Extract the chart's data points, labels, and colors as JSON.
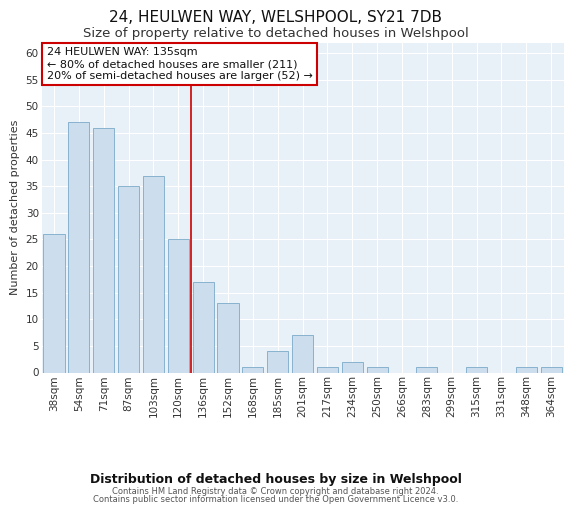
{
  "title": "24, HEULWEN WAY, WELSHPOOL, SY21 7DB",
  "subtitle": "Size of property relative to detached houses in Welshpool",
  "xlabel": "Distribution of detached houses by size in Welshpool",
  "ylabel": "Number of detached properties",
  "categories": [
    "38sqm",
    "54sqm",
    "71sqm",
    "87sqm",
    "103sqm",
    "120sqm",
    "136sqm",
    "152sqm",
    "168sqm",
    "185sqm",
    "201sqm",
    "217sqm",
    "234sqm",
    "250sqm",
    "266sqm",
    "283sqm",
    "299sqm",
    "315sqm",
    "331sqm",
    "348sqm",
    "364sqm"
  ],
  "values": [
    26,
    47,
    46,
    35,
    37,
    25,
    17,
    13,
    1,
    4,
    7,
    1,
    2,
    1,
    0,
    1,
    0,
    1,
    0,
    1,
    1
  ],
  "bar_color": "#ccdded",
  "bar_edge_color": "#7aaac8",
  "highlight_line_index": 6,
  "ylim": [
    0,
    62
  ],
  "yticks": [
    0,
    5,
    10,
    15,
    20,
    25,
    30,
    35,
    40,
    45,
    50,
    55,
    60
  ],
  "annotation_title": "24 HEULWEN WAY: 135sqm",
  "annotation_line1": "← 80% of detached houses are smaller (211)",
  "annotation_line2": "20% of semi-detached houses are larger (52) →",
  "annotation_box_color": "#ffffff",
  "annotation_box_edge": "#cc0000",
  "footer_line1": "Contains HM Land Registry data © Crown copyright and database right 2024.",
  "footer_line2": "Contains public sector information licensed under the Open Government Licence v3.0.",
  "fig_bg_color": "#ffffff",
  "plot_bg_color": "#e8f0f8",
  "grid_color": "#ffffff",
  "title_fontsize": 11,
  "subtitle_fontsize": 9.5,
  "tick_fontsize": 7.5,
  "ylabel_fontsize": 8,
  "xlabel_fontsize": 9,
  "annotation_fontsize": 8,
  "footer_fontsize": 6
}
